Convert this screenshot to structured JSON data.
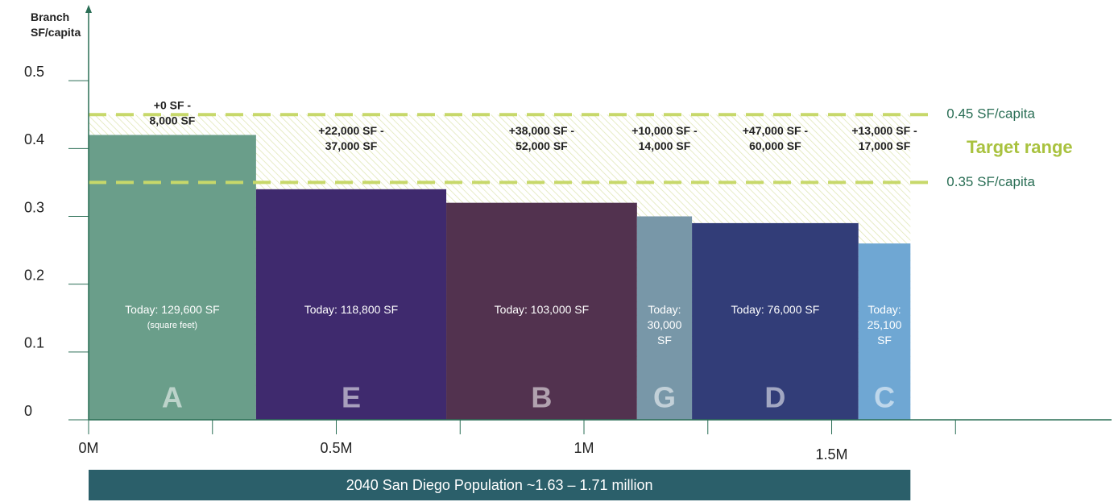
{
  "chart_data": {
    "type": "variable-width-bar",
    "y_axis_label": [
      "Branch",
      "SF/capita"
    ],
    "ylim": [
      0,
      0.6
    ],
    "yticks": [
      0,
      0.1,
      0.2,
      0.3,
      0.4,
      0.5
    ],
    "xlim": [
      0,
      2.065
    ],
    "xticks": [
      {
        "value": 0,
        "label": "0M"
      },
      {
        "value": 0.5,
        "label": "0.5M"
      },
      {
        "value": 1,
        "label": "1M"
      },
      {
        "value": 1.5,
        "label": "1.5M"
      }
    ],
    "xminor_ticks": [
      0.25,
      0.75,
      1.25,
      1.75
    ],
    "categories": [
      "A",
      "E",
      "B",
      "G",
      "D",
      "C"
    ],
    "widths": [
      0.338,
      0.384,
      0.385,
      0.111,
      0.336,
      0.105
    ],
    "values": [
      0.42,
      0.34,
      0.32,
      0.3,
      0.29,
      0.26
    ],
    "colors": [
      "#6a9e8a",
      "#3f2a6e",
      "#52324f",
      "#7897a8",
      "#323d78",
      "#6fa7d3"
    ],
    "today_labels": [
      [
        "Today: 129,600 SF"
      ],
      [
        "Today: 118,800 SF"
      ],
      [
        "Today: 103,000 SF"
      ],
      [
        "Today:",
        "30,000",
        "SF"
      ],
      [
        "Today: 76,000 SF"
      ],
      [
        "Today:",
        "25,100",
        "SF"
      ]
    ],
    "today_note": "(square feet)",
    "addition_labels": [
      [
        "+0 SF -",
        "8,000 SF"
      ],
      [
        "+22,000 SF -",
        "37,000 SF"
      ],
      [
        "+38,000 SF -",
        "52,000 SF"
      ],
      [
        "+10,000 SF -",
        "14,000 SF"
      ],
      [
        "+47,000 SF -",
        "60,000 SF"
      ],
      [
        "+13,000 SF -",
        "17,000 SF"
      ]
    ],
    "target_lines": [
      {
        "value": 0.45,
        "label": "0.45 SF/capita"
      },
      {
        "value": 0.35,
        "label": "0.35 SF/capita"
      }
    ],
    "target_label": "Target range",
    "population_banner": "2040 San Diego Population ~1.63 – 1.71 million"
  }
}
